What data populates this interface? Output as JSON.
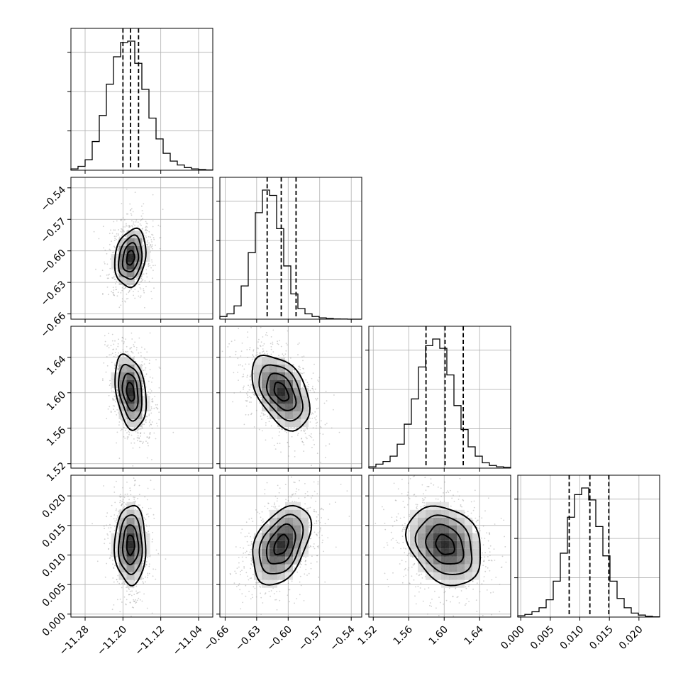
{
  "chart_data": {
    "type": "corner",
    "title": "",
    "parameters": [
      {
        "range": [
          -11.31,
          -11.01
        ],
        "ticks": [
          "−11.28",
          "−11.20",
          "−11.12",
          "−11.04"
        ],
        "tick_values": [
          -11.28,
          -11.2,
          -11.12,
          -11.04
        ],
        "hist_counts": [
          0.01,
          0.03,
          0.08,
          0.22,
          0.42,
          0.66,
          0.87,
          0.98,
          0.99,
          0.82,
          0.62,
          0.4,
          0.24,
          0.13,
          0.07,
          0.04,
          0.02,
          0.01,
          0.005,
          0.002
        ],
        "quantiles": [
          -11.2,
          -11.184,
          -11.167
        ]
      },
      {
        "range": [
          -0.665,
          -0.53
        ],
        "ticks": [
          "−0.66",
          "−0.63",
          "−0.60",
          "−0.57",
          "−0.54"
        ],
        "tick_values": [
          -0.66,
          -0.63,
          -0.6,
          -0.57,
          -0.54
        ],
        "hist_counts": [
          0.02,
          0.04,
          0.1,
          0.25,
          0.5,
          0.8,
          0.97,
          0.93,
          0.68,
          0.4,
          0.19,
          0.08,
          0.04,
          0.02,
          0.01,
          0.005,
          0.002,
          0.001,
          0.0,
          0.0
        ],
        "quantiles": [
          -0.62,
          -0.6066,
          -0.5925
        ]
      },
      {
        "range": [
          1.515,
          1.675
        ],
        "ticks": [
          "1.52",
          "1.56",
          "1.60",
          "1.64"
        ],
        "tick_values": [
          1.52,
          1.56,
          1.6,
          1.64
        ],
        "hist_counts": [
          0.01,
          0.03,
          0.05,
          0.09,
          0.18,
          0.33,
          0.52,
          0.76,
          0.92,
          0.97,
          0.9,
          0.7,
          0.47,
          0.29,
          0.16,
          0.09,
          0.04,
          0.02,
          0.01,
          0.005
        ],
        "quantiles": [
          1.5795,
          1.601,
          1.6215
        ]
      },
      {
        "range": [
          -0.0005,
          0.0235
        ],
        "ticks": [
          "0.000",
          "0.005",
          "0.010",
          "0.015",
          "0.020"
        ],
        "tick_values": [
          0.0,
          0.005,
          0.01,
          0.015,
          0.02
        ],
        "hist_counts": [
          0.01,
          0.02,
          0.04,
          0.07,
          0.13,
          0.27,
          0.48,
          0.75,
          0.92,
          0.97,
          0.88,
          0.68,
          0.46,
          0.27,
          0.14,
          0.07,
          0.03,
          0.015,
          0.006,
          0.002
        ],
        "quantiles": [
          0.0082,
          0.0117,
          0.0149
        ]
      }
    ],
    "correlations": {
      "0-1": 0.2,
      "0-2": -0.3,
      "0-3": 0.0,
      "1-2": -0.45,
      "1-3": 0.4,
      "2-3": -0.25
    },
    "grid": true,
    "colors": {
      "scatter": "#9a9a9a",
      "contour": "#000000",
      "density": "#000000"
    }
  }
}
